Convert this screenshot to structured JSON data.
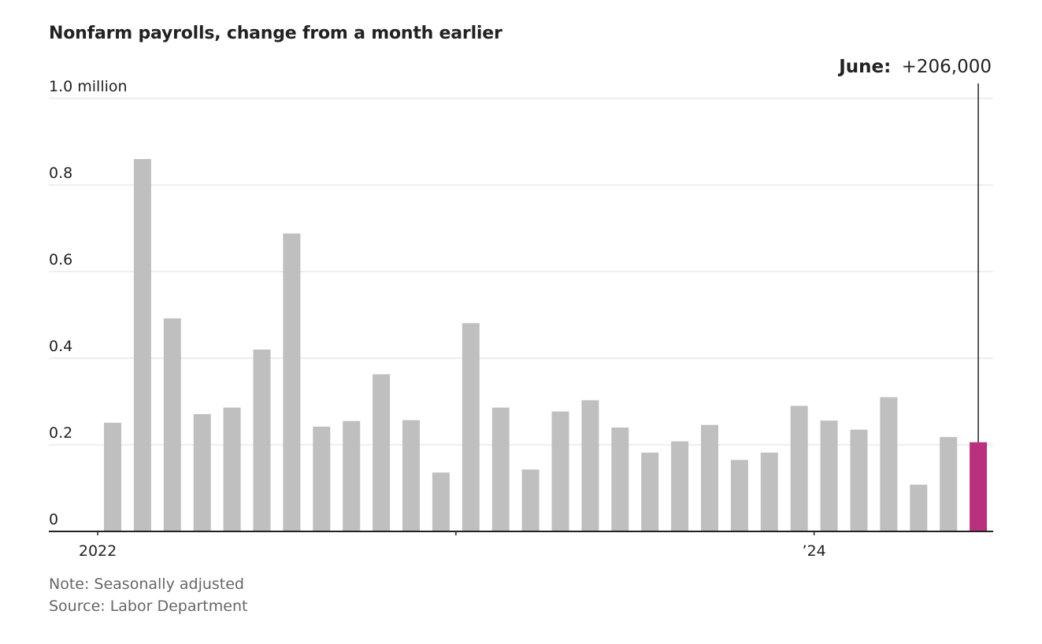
{
  "title": "Nonfarm payrolls, change from a month earlier",
  "note": "Note: Seasonally adjusted",
  "source": "Source: Labor Department",
  "annotation": {
    "label": "June:",
    "value": "+206,000"
  },
  "colors": {
    "bar": "#bfbfbf",
    "highlight": "#b9307e",
    "grid": "#dddddd",
    "axis": "#222222",
    "text": "#222222"
  },
  "chart_data": {
    "type": "bar",
    "title": "Nonfarm payrolls, change from a month earlier",
    "xlabel": "",
    "ylabel": "",
    "ylim": [
      0,
      1.0
    ],
    "y_ticks": [
      {
        "value": 0,
        "label": "0"
      },
      {
        "value": 0.2,
        "label": "0.2"
      },
      {
        "value": 0.4,
        "label": "0.4"
      },
      {
        "value": 0.6,
        "label": "0.6"
      },
      {
        "value": 0.8,
        "label": "0.8"
      },
      {
        "value": 1.0,
        "label": "1.0 million"
      }
    ],
    "x_ticks": [
      {
        "index": 0,
        "label": "2022"
      },
      {
        "index": 12,
        "label": ""
      },
      {
        "index": 24,
        "label": "’24"
      }
    ],
    "categories": [
      "2022-01",
      "2022-02",
      "2022-03",
      "2022-04",
      "2022-05",
      "2022-06",
      "2022-07",
      "2022-08",
      "2022-09",
      "2022-10",
      "2022-11",
      "2022-12",
      "2023-01",
      "2023-02",
      "2023-03",
      "2023-04",
      "2023-05",
      "2023-06",
      "2023-07",
      "2023-08",
      "2023-09",
      "2023-10",
      "2023-11",
      "2023-12",
      "2024-01",
      "2024-02",
      "2024-03",
      "2024-04",
      "2024-05",
      "2024-06"
    ],
    "values": [
      0.251,
      0.86,
      0.492,
      0.271,
      0.286,
      0.42,
      0.688,
      0.242,
      0.255,
      0.363,
      0.257,
      0.136,
      0.481,
      0.286,
      0.143,
      0.277,
      0.303,
      0.24,
      0.182,
      0.208,
      0.246,
      0.165,
      0.182,
      0.29,
      0.256,
      0.235,
      0.31,
      0.108,
      0.218,
      0.206
    ],
    "highlight_index": 29,
    "grid": true
  }
}
